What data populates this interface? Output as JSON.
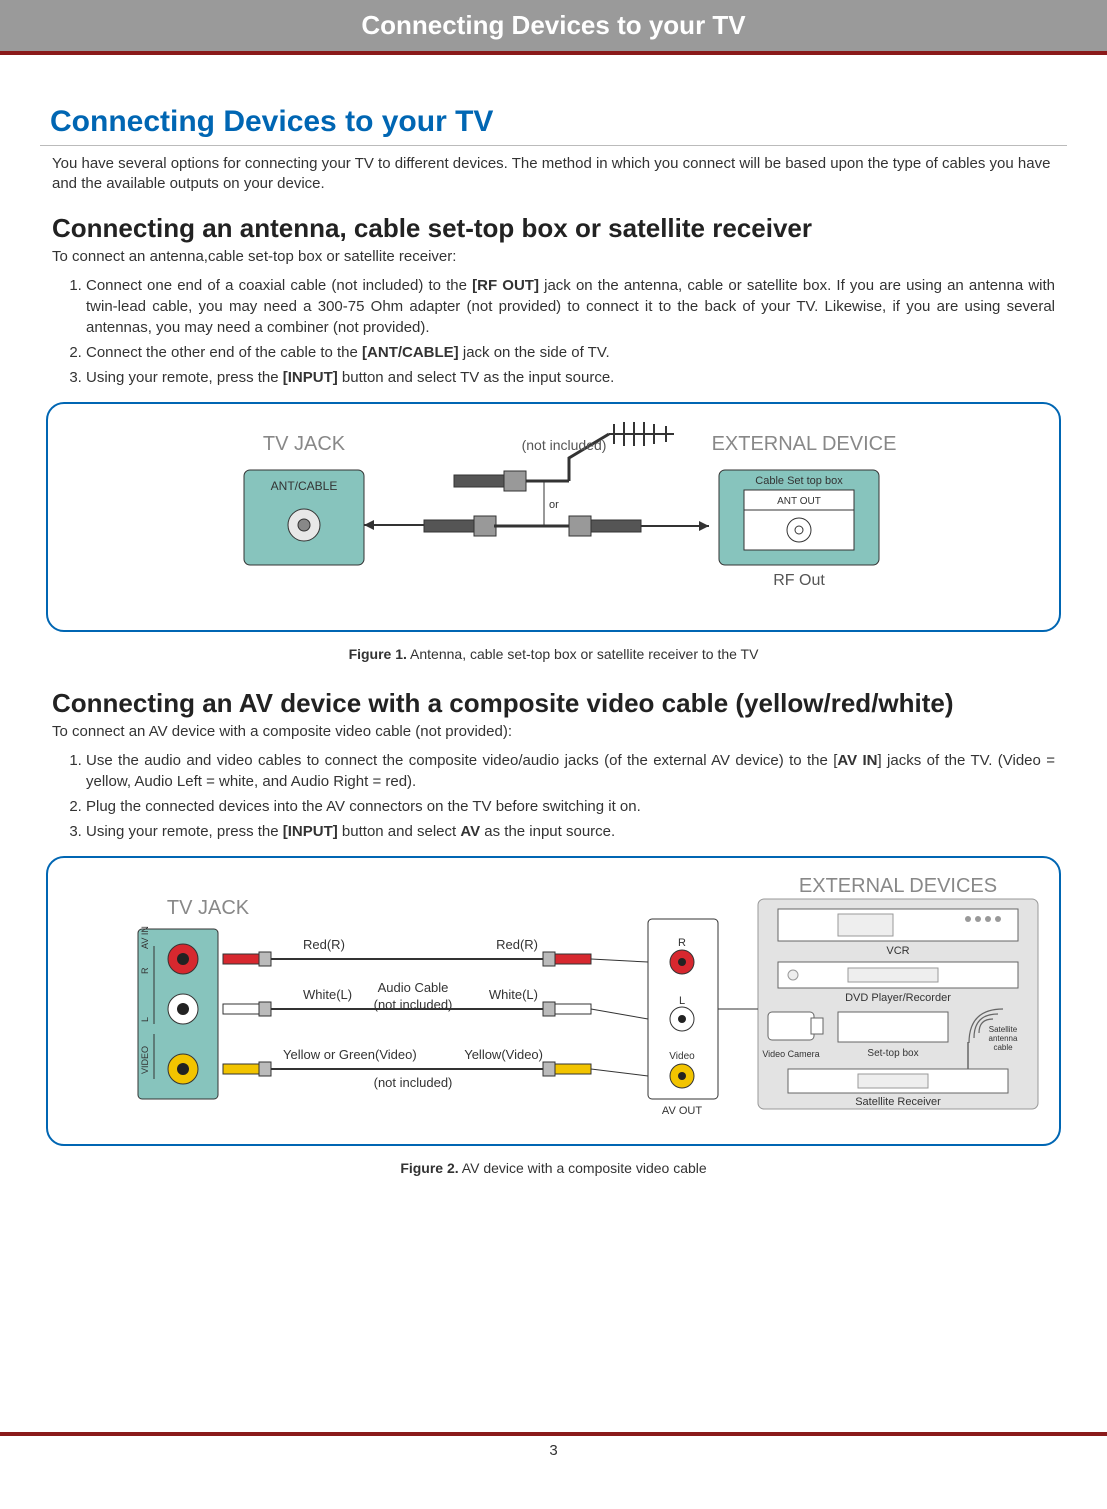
{
  "header": {
    "banner": "Connecting Devices to your TV"
  },
  "title": "Connecting Devices to your TV",
  "intro": "You have several options for connecting your TV to different devices. The method in which you connect will be based upon the type of cables you have and the available outputs on your device.",
  "section1": {
    "heading": "Connecting an antenna, cable set-top box or satellite receiver",
    "lead": "To connect an antenna,cable set-top box or satellite receiver:",
    "steps": [
      "Connect one end of a coaxial cable (not included) to the <b>[RF OUT]</b> jack on the antenna, cable or satellite box. If you are using an antenna with twin-lead cable, you may need a 300-75 Ohm adapter (not provided) to connect it to the back of your TV. Likewise, if you are using several antennas, you may need a combiner (not provided).",
      "Connect the other end of the cable to the <b>[ANT/CABLE]</b> jack on the side of TV.",
      "Using your remote, press the <b>[INPUT]</b> button and select TV as the input source."
    ]
  },
  "figure1": {
    "tv_jack": "TV JACK",
    "ant_cable": "ANT/CABLE",
    "not_included": "(not included)",
    "or": "or",
    "external_device": "EXTERNAL DEVICE",
    "cable_settop": "Cable Set top box",
    "ant_out": "ANT OUT",
    "rf_out": "RF Out",
    "caption_bold": "Figure 1.",
    "caption": "Antenna, cable set-top box or satellite receiver to the TV",
    "colors": {
      "teal": "#87c4bd",
      "gray": "#777",
      "darkgray": "#555",
      "border": "#333"
    }
  },
  "section2": {
    "heading": "Connecting an AV device with a composite video cable (yellow/red/white)",
    "lead": "To connect an AV device with a composite video cable (not provided):",
    "steps": [
      "Use the audio and video cables to connect the composite video/audio jacks (of the external AV device) to the [<b>AV IN</b>] jacks of the TV. (Video = yellow, Audio Left = white, and Audio Right = red).",
      "Plug the connected devices into the AV connectors on the TV before switching it on.",
      "Using your remote, press the <b>[INPUT]</b> button and select <b>AV</b> as the input source."
    ]
  },
  "figure2": {
    "tv_jack": "TV JACK",
    "external_devices": "EXTERNAL DEVICES",
    "av_in": "AV IN",
    "video_side": "VIDEO",
    "r": "R",
    "l": "L",
    "video": "Video",
    "av_out": "AV OUT",
    "red_r": "Red(R)",
    "white_l": "White(L)",
    "yellow_green": "Yellow or Green(Video)",
    "yellow_video": "Yellow(Video)",
    "audio_cable": "Audio Cable",
    "not_included": "(not included)",
    "vcr": "VCR",
    "dvd": "DVD Player/Recorder",
    "video_camera": "Video Camera",
    "settop": "Set-top box",
    "sat_cable": "Satellite antenna cable",
    "sat_receiver": "Satellite Receiver",
    "caption_bold": "Figure 2.",
    "caption": "AV device with a composite video cable",
    "colors": {
      "red": "#d7282f",
      "white": "#ffffff",
      "yellow": "#f2c400",
      "teal": "#87c4bd",
      "panel": "#d9d9d9"
    }
  },
  "page_number": "3"
}
